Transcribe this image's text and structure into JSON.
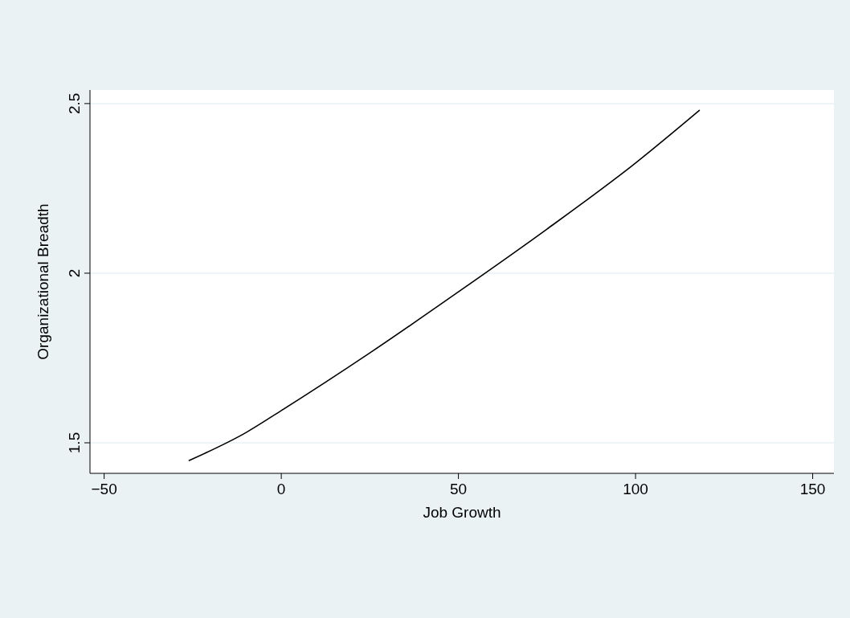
{
  "chart_data": {
    "type": "line",
    "xlabel": "Job Growth",
    "ylabel": "Organizational Breadth",
    "series": [
      {
        "color": "#000000",
        "x": [
          -26,
          -10,
          0,
          25,
          50,
          75,
          100,
          118
        ],
        "values": [
          1.448,
          1.53,
          1.595,
          1.765,
          1.945,
          2.13,
          2.325,
          2.48
        ]
      }
    ],
    "xlim": [
      -54,
      156
    ],
    "xticks": [
      {
        "value": -50,
        "label": "−50"
      },
      0,
      50,
      100,
      150
    ],
    "ylim": [
      1.41,
      2.54
    ],
    "yticks": [
      1.5,
      2,
      2.5
    ],
    "grid": "y",
    "marker": "none",
    "line_style": "solid"
  }
}
